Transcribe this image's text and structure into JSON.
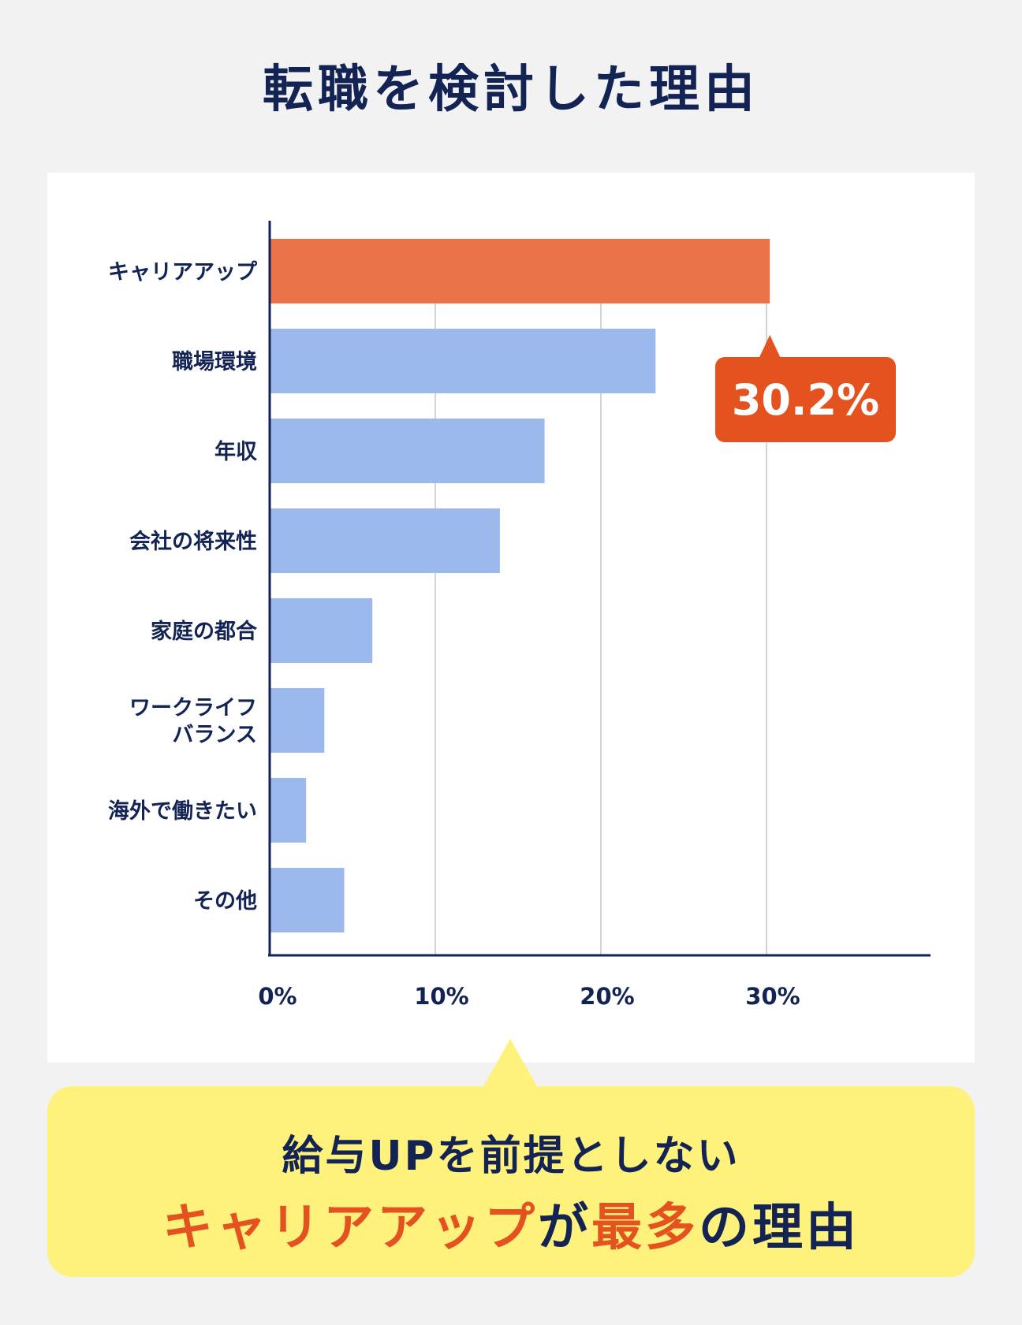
{
  "title": "転職を検討した理由",
  "callout": {
    "label": "30.2%"
  },
  "note": {
    "line1": "給与UPを前提としない",
    "line2_part1": "キャリアアップ",
    "line2_part2": "が",
    "line2_part3": "最多",
    "line2_part4": "の理由"
  },
  "colors": {
    "highlight_bar": "#ea734a",
    "bar": "#9cb9ee",
    "callout": "#e4531f",
    "text": "#132454",
    "note_bg": "#fef17c"
  },
  "chart_data": {
    "type": "bar",
    "orientation": "horizontal",
    "categories": [
      "キャリアアップ",
      "職場環境",
      "年収",
      "会社の将来性",
      "家庭の都合",
      "ワークライフ\nバランス",
      "海外で働きたい",
      "その他"
    ],
    "values": [
      30.2,
      23.3,
      16.6,
      13.9,
      6.2,
      3.3,
      2.2,
      4.5
    ],
    "highlight_index": 0,
    "xlim": [
      0,
      40
    ],
    "x_ticks": [
      0,
      10,
      20,
      30
    ],
    "x_tick_labels": [
      "0%",
      "10%",
      "20%",
      "30%"
    ],
    "grid": true
  }
}
